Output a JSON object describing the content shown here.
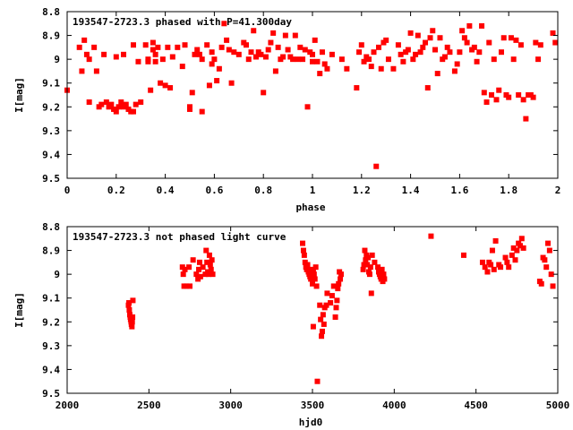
{
  "chart_data": [
    {
      "type": "scatter",
      "title": "193547-2723.3 phased with P=41.300day",
      "xlabel": "phase",
      "ylabel": "I[mag]",
      "xlim": [
        0,
        2
      ],
      "ylim": [
        9.5,
        8.8
      ],
      "y_inverted": true,
      "xticks": [
        "0",
        "0.2",
        "0.4",
        "0.6",
        "0.8",
        "1",
        "1.2",
        "1.4",
        "1.6",
        "1.8",
        "2"
      ],
      "yticks": [
        "8.8",
        "8.9",
        "9",
        "9.1",
        "9.2",
        "9.3",
        "9.4",
        "9.5"
      ],
      "marker_color": "#ff0000",
      "points": [
        [
          0.0,
          9.13
        ],
        [
          0.05,
          8.95
        ],
        [
          0.06,
          9.05
        ],
        [
          0.07,
          8.92
        ],
        [
          0.08,
          8.98
        ],
        [
          0.09,
          9.0
        ],
        [
          0.09,
          9.18
        ],
        [
          0.11,
          8.95
        ],
        [
          0.12,
          9.05
        ],
        [
          0.13,
          9.2
        ],
        [
          0.14,
          9.19
        ],
        [
          0.15,
          8.98
        ],
        [
          0.16,
          9.18
        ],
        [
          0.17,
          9.2
        ],
        [
          0.18,
          9.19
        ],
        [
          0.19,
          9.21
        ],
        [
          0.2,
          8.99
        ],
        [
          0.2,
          9.22
        ],
        [
          0.21,
          9.2
        ],
        [
          0.22,
          9.18
        ],
        [
          0.23,
          8.98
        ],
        [
          0.23,
          9.2
        ],
        [
          0.24,
          9.19
        ],
        [
          0.25,
          9.21
        ],
        [
          0.26,
          9.22
        ],
        [
          0.27,
          9.22
        ],
        [
          0.27,
          8.94
        ],
        [
          0.28,
          9.19
        ],
        [
          0.29,
          9.01
        ],
        [
          0.3,
          9.18
        ],
        [
          0.32,
          8.94
        ],
        [
          0.33,
          9.01
        ],
        [
          0.33,
          9.0
        ],
        [
          0.34,
          9.13
        ],
        [
          0.35,
          8.96
        ],
        [
          0.35,
          8.93
        ],
        [
          0.36,
          8.98
        ],
        [
          0.36,
          9.01
        ],
        [
          0.37,
          8.95
        ],
        [
          0.38,
          9.1
        ],
        [
          0.39,
          9.0
        ],
        [
          0.4,
          9.11
        ],
        [
          0.41,
          8.95
        ],
        [
          0.42,
          9.12
        ],
        [
          0.43,
          8.99
        ],
        [
          0.45,
          8.95
        ],
        [
          0.47,
          9.03
        ],
        [
          0.48,
          8.94
        ],
        [
          0.5,
          9.21
        ],
        [
          0.5,
          9.2
        ],
        [
          0.51,
          9.14
        ],
        [
          0.52,
          8.98
        ],
        [
          0.53,
          8.96
        ],
        [
          0.54,
          8.98
        ],
        [
          0.55,
          9.0
        ],
        [
          0.55,
          9.22
        ],
        [
          0.57,
          8.94
        ],
        [
          0.58,
          9.11
        ],
        [
          0.59,
          9.02
        ],
        [
          0.59,
          8.97
        ],
        [
          0.6,
          9.0
        ],
        [
          0.61,
          9.09
        ],
        [
          0.62,
          9.04
        ],
        [
          0.63,
          8.95
        ],
        [
          0.64,
          8.85
        ],
        [
          0.65,
          8.92
        ],
        [
          0.66,
          8.96
        ],
        [
          0.67,
          9.1
        ],
        [
          0.68,
          8.97
        ],
        [
          0.7,
          8.98
        ],
        [
          0.72,
          8.93
        ],
        [
          0.73,
          8.94
        ],
        [
          0.74,
          9.0
        ],
        [
          0.75,
          8.97
        ],
        [
          0.76,
          8.88
        ],
        [
          0.77,
          8.99
        ],
        [
          0.78,
          8.97
        ],
        [
          0.79,
          8.98
        ],
        [
          0.8,
          9.14
        ],
        [
          0.81,
          8.99
        ],
        [
          0.82,
          8.96
        ],
        [
          0.83,
          8.93
        ],
        [
          0.84,
          8.89
        ],
        [
          0.85,
          9.05
        ],
        [
          0.86,
          8.95
        ],
        [
          0.87,
          9.0
        ],
        [
          0.88,
          8.99
        ],
        [
          0.89,
          8.9
        ],
        [
          0.9,
          8.96
        ],
        [
          0.91,
          8.99
        ],
        [
          0.92,
          9.0
        ],
        [
          0.93,
          8.9
        ],
        [
          0.94,
          9.0
        ],
        [
          0.95,
          8.95
        ],
        [
          0.96,
          9.0
        ],
        [
          0.97,
          8.96
        ],
        [
          0.98,
          9.2
        ],
        [
          0.99,
          8.97
        ],
        [
          1.0,
          8.98
        ],
        [
          1.0,
          9.01
        ],
        [
          1.01,
          8.92
        ],
        [
          1.02,
          9.01
        ],
        [
          1.03,
          9.06
        ],
        [
          1.04,
          8.97
        ],
        [
          1.05,
          9.02
        ],
        [
          1.06,
          9.04
        ],
        [
          1.08,
          8.98
        ],
        [
          1.12,
          9.0
        ],
        [
          1.14,
          9.04
        ],
        [
          1.18,
          9.12
        ],
        [
          1.19,
          8.97
        ],
        [
          1.2,
          8.94
        ],
        [
          1.21,
          9.01
        ],
        [
          1.22,
          8.99
        ],
        [
          1.23,
          9.0
        ],
        [
          1.24,
          9.03
        ],
        [
          1.25,
          8.97
        ],
        [
          1.26,
          9.45
        ],
        [
          1.27,
          8.95
        ],
        [
          1.28,
          9.04
        ],
        [
          1.29,
          8.93
        ],
        [
          1.3,
          8.92
        ],
        [
          1.31,
          9.0
        ],
        [
          1.33,
          9.04
        ],
        [
          1.35,
          8.94
        ],
        [
          1.36,
          8.98
        ],
        [
          1.37,
          9.01
        ],
        [
          1.38,
          8.97
        ],
        [
          1.39,
          8.96
        ],
        [
          1.4,
          8.89
        ],
        [
          1.41,
          9.0
        ],
        [
          1.42,
          8.98
        ],
        [
          1.43,
          8.9
        ],
        [
          1.44,
          8.97
        ],
        [
          1.45,
          8.95
        ],
        [
          1.46,
          8.93
        ],
        [
          1.47,
          9.12
        ],
        [
          1.48,
          8.91
        ],
        [
          1.49,
          8.88
        ],
        [
          1.5,
          8.96
        ],
        [
          1.51,
          9.06
        ],
        [
          1.52,
          8.91
        ],
        [
          1.53,
          9.0
        ],
        [
          1.54,
          8.99
        ],
        [
          1.55,
          8.95
        ],
        [
          1.56,
          8.97
        ],
        [
          1.58,
          9.05
        ],
        [
          1.59,
          9.02
        ],
        [
          1.6,
          8.97
        ],
        [
          1.61,
          8.88
        ],
        [
          1.62,
          8.91
        ],
        [
          1.63,
          8.93
        ],
        [
          1.64,
          8.86
        ],
        [
          1.65,
          8.96
        ],
        [
          1.66,
          8.95
        ],
        [
          1.67,
          9.01
        ],
        [
          1.68,
          8.97
        ],
        [
          1.69,
          8.86
        ],
        [
          1.7,
          9.14
        ],
        [
          1.71,
          9.18
        ],
        [
          1.72,
          8.93
        ],
        [
          1.73,
          9.15
        ],
        [
          1.74,
          9.0
        ],
        [
          1.75,
          9.17
        ],
        [
          1.76,
          9.13
        ],
        [
          1.77,
          8.97
        ],
        [
          1.78,
          8.91
        ],
        [
          1.79,
          9.15
        ],
        [
          1.8,
          9.16
        ],
        [
          1.81,
          8.91
        ],
        [
          1.82,
          9.0
        ],
        [
          1.83,
          8.92
        ],
        [
          1.84,
          9.15
        ],
        [
          1.85,
          8.94
        ],
        [
          1.86,
          9.17
        ],
        [
          1.87,
          9.25
        ],
        [
          1.88,
          9.15
        ],
        [
          1.89,
          9.15
        ],
        [
          1.9,
          9.16
        ],
        [
          1.91,
          8.93
        ],
        [
          1.92,
          9.0
        ],
        [
          1.93,
          8.94
        ],
        [
          1.98,
          8.89
        ],
        [
          1.99,
          8.93
        ]
      ]
    },
    {
      "type": "scatter",
      "title": "193547-2723.3 not phased light curve",
      "xlabel": "hjd0",
      "ylabel": "I[mag]",
      "xlim": [
        2000,
        5000
      ],
      "ylim": [
        9.5,
        8.8
      ],
      "y_inverted": true,
      "xticks": [
        "2000",
        "2500",
        "3000",
        "3500",
        "4000",
        "4500",
        "5000"
      ],
      "yticks": [
        "8.8",
        "8.9",
        "9",
        "9.1",
        "9.2",
        "9.3",
        "9.4",
        "9.5"
      ],
      "marker_color": "#ff0000",
      "points": [
        [
          2375,
          9.13
        ],
        [
          2378,
          9.12
        ],
        [
          2380,
          9.15
        ],
        [
          2383,
          9.17
        ],
        [
          2386,
          9.18
        ],
        [
          2388,
          9.19
        ],
        [
          2391,
          9.2
        ],
        [
          2393,
          9.21
        ],
        [
          2396,
          9.22
        ],
        [
          2398,
          9.2
        ],
        [
          2400,
          9.18
        ],
        [
          2402,
          9.11
        ],
        [
          2705,
          8.97
        ],
        [
          2710,
          9.0
        ],
        [
          2715,
          9.05
        ],
        [
          2720,
          8.98
        ],
        [
          2730,
          9.05
        ],
        [
          2745,
          8.97
        ],
        [
          2750,
          9.05
        ],
        [
          2770,
          8.94
        ],
        [
          2790,
          9.0
        ],
        [
          2800,
          9.02
        ],
        [
          2805,
          8.98
        ],
        [
          2810,
          8.95
        ],
        [
          2815,
          9.01
        ],
        [
          2830,
          8.97
        ],
        [
          2845,
          9.0
        ],
        [
          2850,
          8.9
        ],
        [
          2855,
          8.95
        ],
        [
          2860,
          8.99
        ],
        [
          2865,
          9.0
        ],
        [
          2870,
          8.92
        ],
        [
          2875,
          8.96
        ],
        [
          2880,
          8.98
        ],
        [
          2885,
          8.94
        ],
        [
          2890,
          9.0
        ],
        [
          3440,
          8.87
        ],
        [
          3445,
          8.9
        ],
        [
          3450,
          8.92
        ],
        [
          3455,
          8.95
        ],
        [
          3460,
          8.97
        ],
        [
          3465,
          8.98
        ],
        [
          3470,
          8.96
        ],
        [
          3475,
          8.99
        ],
        [
          3480,
          9.0
        ],
        [
          3485,
          9.01
        ],
        [
          3490,
          9.02
        ],
        [
          3495,
          8.98
        ],
        [
          3500,
          9.04
        ],
        [
          3505,
          8.99
        ],
        [
          3510,
          9.0
        ],
        [
          3515,
          9.02
        ],
        [
          3520,
          8.97
        ],
        [
          3525,
          9.05
        ],
        [
          3505,
          9.22
        ],
        [
          3530,
          9.45
        ],
        [
          3545,
          9.13
        ],
        [
          3550,
          9.19
        ],
        [
          3555,
          9.26
        ],
        [
          3560,
          9.24
        ],
        [
          3565,
          9.17
        ],
        [
          3570,
          9.21
        ],
        [
          3575,
          9.14
        ],
        [
          3585,
          9.13
        ],
        [
          3590,
          9.08
        ],
        [
          3610,
          9.12
        ],
        [
          3620,
          9.09
        ],
        [
          3630,
          9.05
        ],
        [
          3640,
          9.18
        ],
        [
          3645,
          9.14
        ],
        [
          3650,
          9.11
        ],
        [
          3655,
          9.06
        ],
        [
          3660,
          9.04
        ],
        [
          3665,
          8.99
        ],
        [
          3670,
          9.02
        ],
        [
          3675,
          9.0
        ],
        [
          3810,
          8.98
        ],
        [
          3815,
          8.96
        ],
        [
          3820,
          8.9
        ],
        [
          3825,
          8.94
        ],
        [
          3830,
          8.92
        ],
        [
          3835,
          8.96
        ],
        [
          3840,
          8.93
        ],
        [
          3845,
          8.99
        ],
        [
          3850,
          9.0
        ],
        [
          3855,
          8.97
        ],
        [
          3860,
          9.08
        ],
        [
          3865,
          8.92
        ],
        [
          3880,
          8.95
        ],
        [
          3900,
          8.97
        ],
        [
          3905,
          8.99
        ],
        [
          3910,
          9.0
        ],
        [
          3915,
          9.01
        ],
        [
          3920,
          9.02
        ],
        [
          3925,
          8.98
        ],
        [
          3930,
          9.03
        ],
        [
          3935,
          9.0
        ],
        [
          3940,
          9.02
        ],
        [
          4225,
          8.84
        ],
        [
          4425,
          8.92
        ],
        [
          4540,
          8.95
        ],
        [
          4555,
          8.97
        ],
        [
          4570,
          8.99
        ],
        [
          4580,
          8.95
        ],
        [
          4590,
          8.96
        ],
        [
          4600,
          8.9
        ],
        [
          4610,
          8.98
        ],
        [
          4620,
          8.86
        ],
        [
          4640,
          8.96
        ],
        [
          4650,
          8.97
        ],
        [
          4680,
          8.93
        ],
        [
          4690,
          8.95
        ],
        [
          4700,
          8.97
        ],
        [
          4720,
          8.92
        ],
        [
          4730,
          8.89
        ],
        [
          4740,
          8.94
        ],
        [
          4750,
          8.9
        ],
        [
          4760,
          8.87
        ],
        [
          4770,
          8.88
        ],
        [
          4780,
          8.85
        ],
        [
          4790,
          8.89
        ],
        [
          4890,
          9.03
        ],
        [
          4900,
          9.04
        ],
        [
          4910,
          8.93
        ],
        [
          4920,
          8.94
        ],
        [
          4930,
          8.97
        ],
        [
          4940,
          8.87
        ],
        [
          4950,
          8.9
        ],
        [
          4960,
          9.0
        ],
        [
          4970,
          9.05
        ]
      ]
    }
  ]
}
